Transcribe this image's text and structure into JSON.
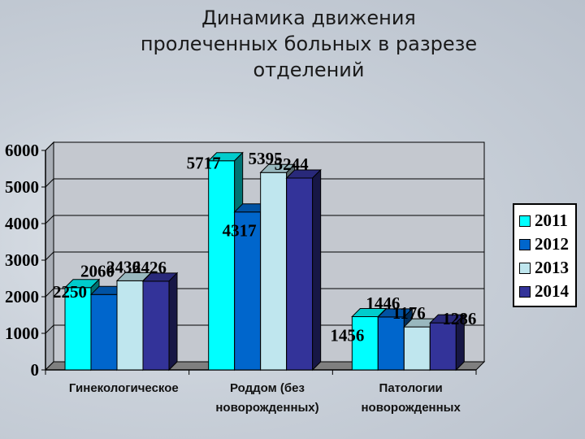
{
  "title_lines": [
    "Динамика движения",
    "пролеченных больных в разрезе",
    "отделений"
  ],
  "chart_data": {
    "type": "bar",
    "title": "Динамика движения пролеченных больных в разрезе отделений",
    "categories": [
      "Гинекологическое",
      "Роддом (без новорожденных)",
      "Патологии новорожденных"
    ],
    "category_lines": [
      [
        "Гинекологическое"
      ],
      [
        "Роддом (без",
        "новорожденных)"
      ],
      [
        "Патологии",
        "новорожденных"
      ]
    ],
    "series": [
      {
        "name": "2011",
        "values": [
          2250,
          5717,
          1456
        ],
        "color": "#00ffff"
      },
      {
        "name": "2012",
        "values": [
          2060,
          4317,
          1446
        ],
        "color": "#0066cc"
      },
      {
        "name": "2013",
        "values": [
          2436,
          5395,
          1176
        ],
        "color": "#bfe6ee"
      },
      {
        "name": "2014",
        "values": [
          2426,
          5244,
          1286
        ],
        "color": "#333399"
      }
    ],
    "yticks": [
      "0",
      "1000",
      "2000",
      "3000",
      "4000",
      "5000",
      "6000"
    ],
    "ylim": [
      0,
      6000
    ],
    "grid": true,
    "legend_position": "right"
  }
}
